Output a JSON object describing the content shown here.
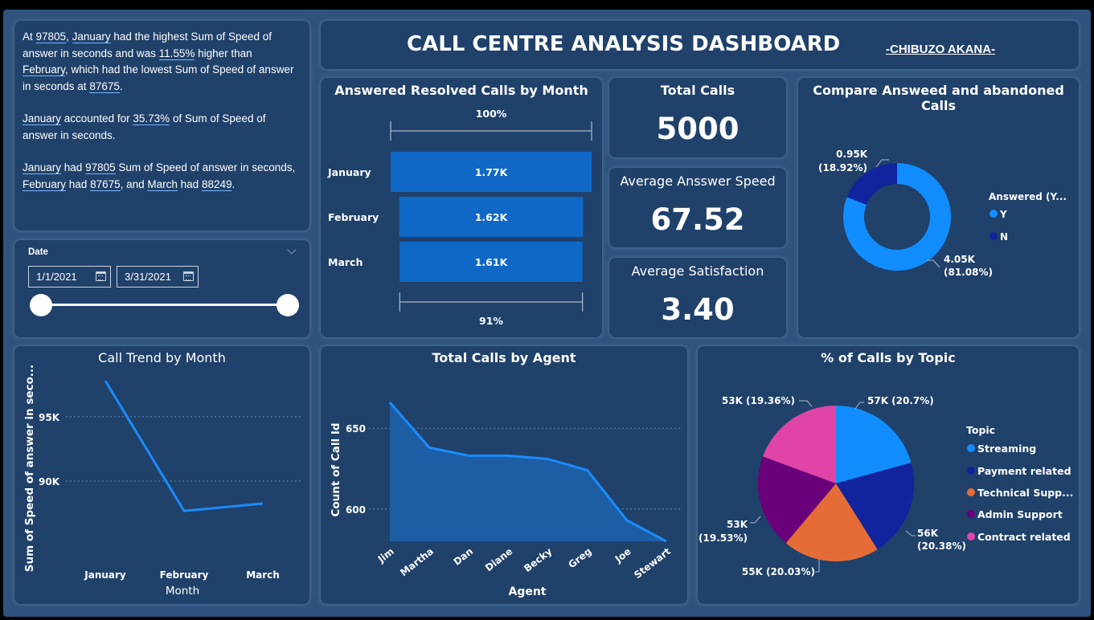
{
  "header": {
    "title": "CALL CENTRE ANALYSIS DASHBOARD",
    "author": "-CHIBUZO AKANA-"
  },
  "narrative": {
    "p1": [
      "At ",
      "97805",
      ", ",
      "January",
      " had the highest Sum of Speed of answer in seconds and was ",
      "11.55%",
      " higher than ",
      "February",
      ", which had the lowest Sum of Speed of answer in seconds at ",
      "87675",
      "."
    ],
    "p2": [
      "January",
      " accounted for ",
      "35.73%",
      " of Sum of Speed of answer in seconds."
    ],
    "p3": [
      "January",
      " had ",
      "97805",
      " Sum of Speed of answer in seconds, ",
      "February",
      " had ",
      "87675",
      ", and ",
      "March",
      " had ",
      "88249",
      "."
    ]
  },
  "date_slicer": {
    "label": "Date",
    "start": "1/1/2021",
    "end": "3/31/2021",
    "range_fraction": [
      0,
      1
    ]
  },
  "kpis": {
    "total_calls": {
      "label": "Total Calls",
      "value": "5000"
    },
    "avg_speed": {
      "label": "Average Ansswer Speed",
      "value": "67.52"
    },
    "avg_satisfaction": {
      "label": "Average Satisfaction",
      "value": "3.40"
    }
  },
  "titles": {
    "resolved": "Answered Resolved Calls by Month",
    "compare": "Compare Answeed and abandoned Calls",
    "trend": "Call Trend by Month",
    "agent": "Total Calls by Agent",
    "topic": "% of Calls by Topic"
  },
  "colors": {
    "background": "#2f537c",
    "card": "#1f416a",
    "bar": "#1068c6",
    "line": "#1a8cff",
    "answered_y": "#118dff",
    "answered_n": "#12239e",
    "streaming": "#118dff",
    "payment": "#12239e",
    "technical": "#e66c37",
    "admin": "#6b007b",
    "contract": "#e044a7"
  },
  "chart_data": [
    {
      "id": "resolved",
      "type": "funnel",
      "title": "Answered Resolved Calls by Month",
      "categories": [
        "January",
        "February",
        "March"
      ],
      "values": [
        1770,
        1620,
        1610
      ],
      "labels": [
        "1.77K",
        "1.62K",
        "1.61K"
      ],
      "top_pct": "100%",
      "bottom_pct": "91%"
    },
    {
      "id": "compare",
      "type": "donut",
      "title": "Compare Answeed and abandoned Calls",
      "legend_title": "Answered (Y...",
      "slices": [
        {
          "name": "Y",
          "value": 4050,
          "label": "4.05K",
          "pct": "(81.08%)"
        },
        {
          "name": "N",
          "value": 950,
          "label": "0.95K",
          "pct": "(18.92%)"
        }
      ],
      "legend_placement": "right"
    },
    {
      "id": "trend",
      "type": "line",
      "title": "Call Trend by Month",
      "categories": [
        "January",
        "February",
        "March"
      ],
      "values": [
        97805,
        87675,
        88249
      ],
      "xlabel": "Month",
      "ylabel": "Sum of Speed of answer in seco...",
      "ylim": [
        85500,
        98000
      ],
      "yticks": [
        90000,
        95000
      ],
      "ytick_labels": [
        "90K",
        "95K"
      ],
      "grid": true
    },
    {
      "id": "agent",
      "type": "area",
      "title": "Total Calls by Agent",
      "categories": [
        "Jim",
        "Martha",
        "Dan",
        "Diane",
        "Becky",
        "Greg",
        "Joe",
        "Stewart"
      ],
      "values": [
        666,
        638,
        633,
        633,
        631,
        624,
        593,
        580
      ],
      "xlabel": "Agent",
      "ylabel": "Count of Call Id",
      "ylim": [
        580,
        672
      ],
      "yticks": [
        600,
        650
      ],
      "ytick_labels": [
        "600",
        "650"
      ],
      "grid": true
    },
    {
      "id": "topic",
      "type": "pie",
      "title": "% of Calls by Topic",
      "legend_title": "Topic",
      "slices": [
        {
          "name": "Streaming",
          "legend": "Streaming",
          "value": 20.7,
          "label": "57K (20.7%)"
        },
        {
          "name": "Payment related",
          "legend": "Payment related",
          "value": 20.38,
          "label1": "56K",
          "label2": "(20.38%)"
        },
        {
          "name": "Technical Support",
          "legend": "Technical Supp...",
          "value": 20.03,
          "label": "55K (20.03%)"
        },
        {
          "name": "Admin Support",
          "legend": "Admin Support",
          "value": 19.53,
          "label1": "53K",
          "label2": "(19.53%)"
        },
        {
          "name": "Contract related",
          "legend": "Contract related",
          "value": 19.36,
          "label": "53K (19.36%)"
        }
      ],
      "legend_placement": "right"
    }
  ]
}
